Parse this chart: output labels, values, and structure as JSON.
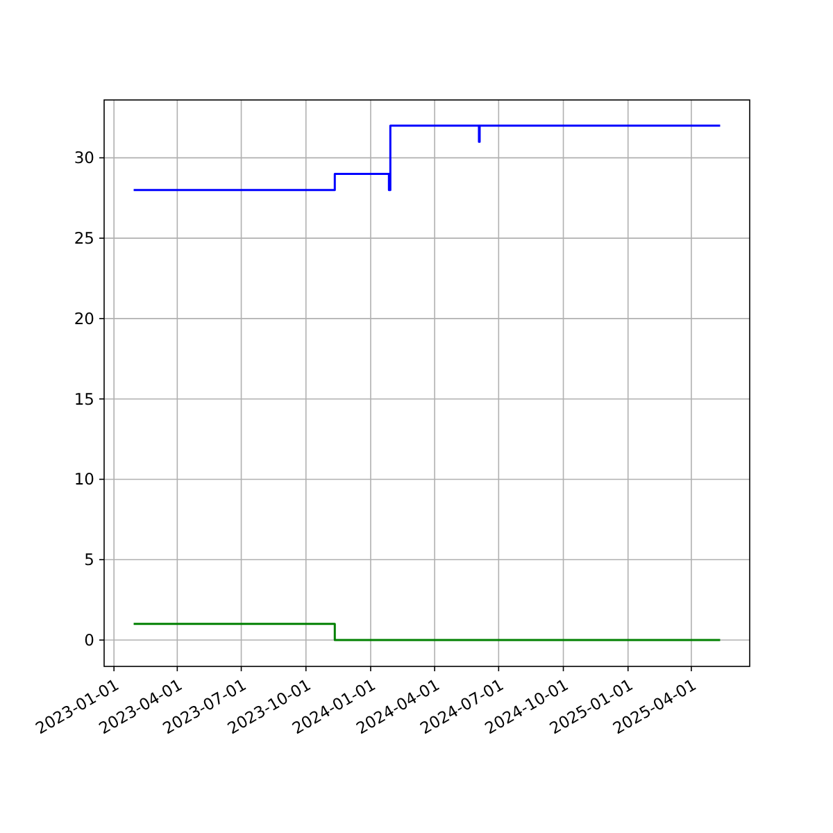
{
  "chart_data": {
    "type": "step",
    "xlim": [
      "2022-12-18",
      "2025-06-23"
    ],
    "ylim": [
      -1.64,
      33.6
    ],
    "xticks": [
      {
        "value": "2023-01-01",
        "label": "2023-01-01"
      },
      {
        "value": "2023-04-01",
        "label": "2023-04-01"
      },
      {
        "value": "2023-07-01",
        "label": "2023-07-01"
      },
      {
        "value": "2023-10-01",
        "label": "2023-10-01"
      },
      {
        "value": "2024-01-01",
        "label": "2024-01-01"
      },
      {
        "value": "2024-04-01",
        "label": "2024-04-01"
      },
      {
        "value": "2024-07-01",
        "label": "2024-07-01"
      },
      {
        "value": "2024-10-01",
        "label": "2024-10-01"
      },
      {
        "value": "2025-01-01",
        "label": "2025-01-01"
      },
      {
        "value": "2025-04-01",
        "label": "2025-04-01"
      }
    ],
    "yticks": [
      0,
      5,
      10,
      15,
      20,
      25,
      30
    ],
    "grid": true,
    "series": [
      {
        "color": "#0000ff",
        "x": [
          "2023-01-29",
          "2023-11-11",
          "2024-01-27",
          "2024-01-29",
          "2024-06-03",
          "2024-06-04",
          "2025-05-12"
        ],
        "values": [
          28,
          29,
          28,
          32,
          31,
          32,
          32
        ]
      },
      {
        "color": "#008000",
        "x": [
          "2023-01-29",
          "2023-11-11",
          "2025-05-12"
        ],
        "values": [
          1,
          0,
          0
        ]
      }
    ]
  }
}
